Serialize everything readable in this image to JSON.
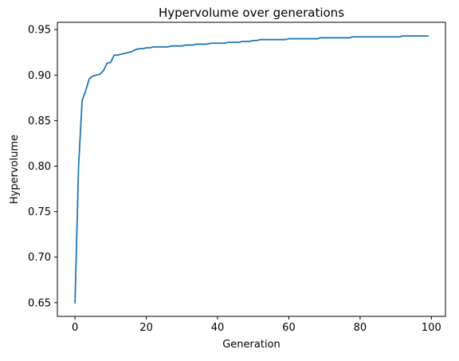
{
  "chart_data": {
    "type": "line",
    "title": "Hypervolume over generations",
    "xlabel": "Generation",
    "ylabel": "Hypervolume",
    "xlim": [
      -4.95,
      103.95
    ],
    "ylim": [
      0.635,
      0.958
    ],
    "xticks": [
      0,
      20,
      40,
      60,
      80,
      100
    ],
    "yticks": [
      0.65,
      0.7,
      0.75,
      0.8,
      0.85,
      0.9,
      0.95
    ],
    "xtick_labels": [
      "0",
      "20",
      "40",
      "60",
      "80",
      "100"
    ],
    "ytick_labels": [
      "0.65",
      "0.70",
      "0.75",
      "0.80",
      "0.85",
      "0.90",
      "0.95"
    ],
    "grid": false,
    "legend": "none",
    "line_color": "#1f77b4",
    "series": [
      {
        "x": [
          0,
          1,
          2,
          3,
          4,
          5,
          6,
          7,
          8,
          9,
          10,
          11,
          12,
          13,
          14,
          15,
          16,
          17,
          18,
          19,
          20,
          21,
          22,
          23,
          24,
          25,
          26,
          27,
          28,
          29,
          30,
          31,
          32,
          33,
          34,
          35,
          36,
          37,
          38,
          39,
          40,
          41,
          42,
          43,
          44,
          45,
          46,
          47,
          48,
          49,
          50,
          51,
          52,
          53,
          54,
          55,
          56,
          57,
          58,
          59,
          60,
          61,
          62,
          63,
          64,
          65,
          66,
          67,
          68,
          69,
          70,
          71,
          72,
          73,
          74,
          75,
          76,
          77,
          78,
          79,
          80,
          81,
          82,
          83,
          84,
          85,
          86,
          87,
          88,
          89,
          90,
          91,
          92,
          93,
          94,
          95,
          96,
          97,
          98,
          99
        ],
        "y": [
          0.65,
          0.8,
          0.872,
          0.883,
          0.896,
          0.899,
          0.9,
          0.901,
          0.905,
          0.913,
          0.914,
          0.922,
          0.922,
          0.923,
          0.924,
          0.925,
          0.926,
          0.928,
          0.929,
          0.929,
          0.93,
          0.93,
          0.931,
          0.931,
          0.931,
          0.931,
          0.931,
          0.932,
          0.932,
          0.932,
          0.932,
          0.933,
          0.933,
          0.933,
          0.934,
          0.934,
          0.934,
          0.934,
          0.935,
          0.935,
          0.935,
          0.935,
          0.935,
          0.936,
          0.936,
          0.936,
          0.936,
          0.937,
          0.937,
          0.937,
          0.938,
          0.938,
          0.939,
          0.939,
          0.939,
          0.939,
          0.939,
          0.939,
          0.939,
          0.939,
          0.94,
          0.94,
          0.94,
          0.94,
          0.94,
          0.94,
          0.94,
          0.94,
          0.94,
          0.941,
          0.941,
          0.941,
          0.941,
          0.941,
          0.941,
          0.941,
          0.941,
          0.941,
          0.942,
          0.942,
          0.942,
          0.942,
          0.942,
          0.942,
          0.942,
          0.942,
          0.942,
          0.942,
          0.942,
          0.942,
          0.942,
          0.942,
          0.943,
          0.943,
          0.943,
          0.943,
          0.943,
          0.943,
          0.943,
          0.943
        ]
      }
    ]
  }
}
